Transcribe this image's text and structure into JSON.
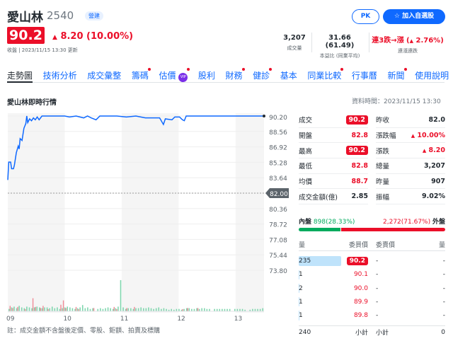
{
  "header": {
    "name": "愛山林",
    "code": "2540",
    "industry_badge": "營建",
    "pk_label": "PK",
    "add_watchlist_label": "加入自選股"
  },
  "quote": {
    "price": "90.2",
    "change": "8.20 (10.00%)",
    "update": "收盤 | 2023/11/15 13:30 更新",
    "volume": "3,207",
    "volume_label": "成交量",
    "pe": "31.66 (61.49)",
    "pe_label": "本益比 (同業平均)",
    "streak": "連3跌→漲 (",
    "streak_pct": "2.76%)",
    "streak_label": "連漲連跌"
  },
  "nav": [
    {
      "label": "走勢圖",
      "active": true
    },
    {
      "label": "技術分析"
    },
    {
      "label": "成交彙整"
    },
    {
      "label": "籌碼",
      "dot": true
    },
    {
      "label": "估價",
      "vip": "VIP",
      "dot": true
    },
    {
      "label": "股利"
    },
    {
      "label": "財務",
      "dot": true
    },
    {
      "label": "健診",
      "dot": true
    },
    {
      "label": "基本"
    },
    {
      "label": "同業比較",
      "dot": true
    },
    {
      "label": "行事曆"
    },
    {
      "label": "新聞",
      "dot": true
    },
    {
      "label": "使用說明"
    }
  ],
  "chart_title": "愛山林即時行情",
  "data_time": "資料時間：2023/11/15 13:30",
  "colors": {
    "up": "#eb0f29",
    "down": "#00ab5e",
    "line": "#0f69ff",
    "accent": "#0f69ff"
  },
  "chart_data": {
    "type": "line",
    "x_ticks": [
      "09",
      "10",
      "11",
      "12",
      "13"
    ],
    "y_ticks": [
      "90.20",
      "88.56",
      "86.92",
      "85.28",
      "83.64",
      "82.00",
      "80.36",
      "78.72",
      "77.08",
      "75.44",
      "73.80"
    ],
    "ylim": [
      73.8,
      90.2
    ],
    "reference_price": "82.00",
    "xlim": [
      "09:00",
      "13:30"
    ],
    "price": [
      [
        "09:00",
        83.4
      ],
      [
        "09:01",
        85.3
      ],
      [
        "09:03",
        85.3
      ],
      [
        "09:04",
        84.6
      ],
      [
        "09:06",
        84.6
      ],
      [
        "09:07",
        85.0
      ],
      [
        "09:09",
        86.3
      ],
      [
        "09:11",
        87.0
      ],
      [
        "09:12",
        86.7
      ],
      [
        "09:13",
        87.8
      ],
      [
        "09:15",
        87.6
      ],
      [
        "09:17",
        88.9
      ],
      [
        "09:19",
        89.4
      ],
      [
        "09:20",
        90.2
      ],
      [
        "09:21",
        89.5
      ],
      [
        "09:23",
        89.9
      ],
      [
        "09:25",
        89.7
      ],
      [
        "09:27",
        90.0
      ],
      [
        "09:29",
        89.8
      ],
      [
        "09:31",
        90.1
      ],
      [
        "09:33",
        89.8
      ],
      [
        "09:36",
        90.2
      ],
      [
        "10:00",
        90.2
      ],
      [
        "10:05",
        90.1
      ],
      [
        "10:12",
        90.2
      ],
      [
        "10:20",
        90.0
      ],
      [
        "10:24",
        90.2
      ],
      [
        "10:28",
        90.0
      ],
      [
        "10:33",
        89.8
      ],
      [
        "10:37",
        90.2
      ],
      [
        "10:42",
        90.2
      ],
      [
        "10:55",
        90.2
      ],
      [
        "11:05",
        90.1
      ],
      [
        "11:15",
        90.2
      ],
      [
        "11:25",
        90.0
      ],
      [
        "11:40",
        90.0
      ],
      [
        "11:44",
        89.3
      ],
      [
        "11:46",
        89.9
      ],
      [
        "11:53",
        89.8
      ],
      [
        "11:56",
        90.1
      ],
      [
        "12:01",
        90.1
      ],
      [
        "12:04",
        89.8
      ],
      [
        "12:06",
        89.7
      ],
      [
        "12:08",
        90.2
      ],
      [
        "13:30",
        90.2
      ]
    ],
    "volume_up": [
      5,
      3,
      0,
      4,
      0,
      0,
      2,
      0,
      0,
      12,
      4,
      0,
      3,
      5,
      0,
      2,
      0,
      0,
      0,
      0,
      6,
      10,
      3,
      0,
      0,
      0,
      4,
      2,
      0,
      0,
      0,
      0,
      0,
      3,
      0,
      0,
      0,
      0,
      0,
      0,
      0,
      4,
      2,
      0,
      0,
      0,
      3,
      0,
      0,
      4,
      0,
      0,
      0,
      0,
      0,
      0,
      0,
      0,
      0,
      0,
      0,
      0,
      0,
      0,
      0,
      0,
      0,
      0,
      2,
      0,
      3,
      0,
      0,
      0,
      3,
      0,
      0,
      0,
      0,
      0,
      0,
      0,
      0,
      0,
      0,
      0,
      0,
      0,
      0,
      0,
      0,
      0,
      0,
      0,
      0,
      0,
      0,
      0,
      0,
      0,
      0
    ],
    "volume_down": [
      3,
      5,
      6,
      4,
      7,
      5,
      4,
      6,
      5,
      4,
      5,
      6,
      5,
      4,
      5,
      5,
      4,
      6,
      4,
      5,
      3,
      4,
      5,
      6,
      5,
      4,
      3,
      4,
      5,
      8,
      4,
      5,
      3,
      4,
      0,
      3,
      4,
      3,
      4,
      5,
      4,
      3,
      4,
      6,
      40,
      5,
      3,
      4,
      4,
      3,
      4,
      4,
      5,
      4,
      4,
      5,
      4,
      3,
      4,
      5,
      3,
      4,
      3,
      2,
      3,
      2,
      3,
      3,
      2,
      3,
      4,
      4,
      3,
      3,
      4,
      3,
      4,
      4,
      3,
      3,
      0,
      3,
      3,
      3,
      3,
      3,
      3,
      3,
      0,
      3,
      3,
      3,
      3,
      2,
      0,
      2,
      3,
      3,
      3,
      3,
      4
    ]
  },
  "summary": [
    {
      "l1": "成交",
      "v1": "90.2",
      "s1": "box",
      "l2": "昨收",
      "v2": "82.0",
      "s2": "b"
    },
    {
      "l1": "開盤",
      "v1": "82.8",
      "s1": "red",
      "l2": "漲跌幅",
      "v2": "10.00%",
      "s2": "redup"
    },
    {
      "l1": "最高",
      "v1": "90.2",
      "s1": "box",
      "l2": "漲跌",
      "v2": "8.20",
      "s2": "redup"
    },
    {
      "l1": "最低",
      "v1": "82.8",
      "s1": "red",
      "l2": "總量",
      "v2": "3,207",
      "s2": "b"
    },
    {
      "l1": "均價",
      "v1": "88.7",
      "s1": "red",
      "l2": "昨量",
      "v2": "907",
      "s2": "b"
    },
    {
      "l1": "成交金額(億)",
      "v1": "2.85",
      "s1": "b",
      "l2": "振幅",
      "v2": "9.02%",
      "s2": "b"
    }
  ],
  "inner_outer": {
    "inner_label": "內盤",
    "inner": "898(28.33%)",
    "inner_pct": 28.33,
    "outer": "2,272(71.67%)",
    "outer_label": "外盤",
    "outer_pct": 71.67
  },
  "orderbook": {
    "h_qty": "量",
    "h_bid": "委買價",
    "h_ask": "委賣價",
    "h_qty2": "量",
    "rows": [
      {
        "bq": "235",
        "bp": "90.2",
        "ap": "-",
        "aq": "-",
        "bar": 1
      },
      {
        "bq": "1",
        "bp": "90.1",
        "ap": "-",
        "aq": "-",
        "bar": 0.004
      },
      {
        "bq": "2",
        "bp": "90.0",
        "ap": "-",
        "aq": "-",
        "bar": 0.008
      },
      {
        "bq": "1",
        "bp": "89.9",
        "ap": "-",
        "aq": "-",
        "bar": 0.004
      },
      {
        "bq": "1",
        "bp": "89.8",
        "ap": "-",
        "aq": "-",
        "bar": 0.004
      }
    ],
    "bid_total": "240",
    "subtotal": "小計",
    "ask_total": "0"
  },
  "note": "註：成交金額不含盤後定價、零股、鉅額、拍賣及標購"
}
